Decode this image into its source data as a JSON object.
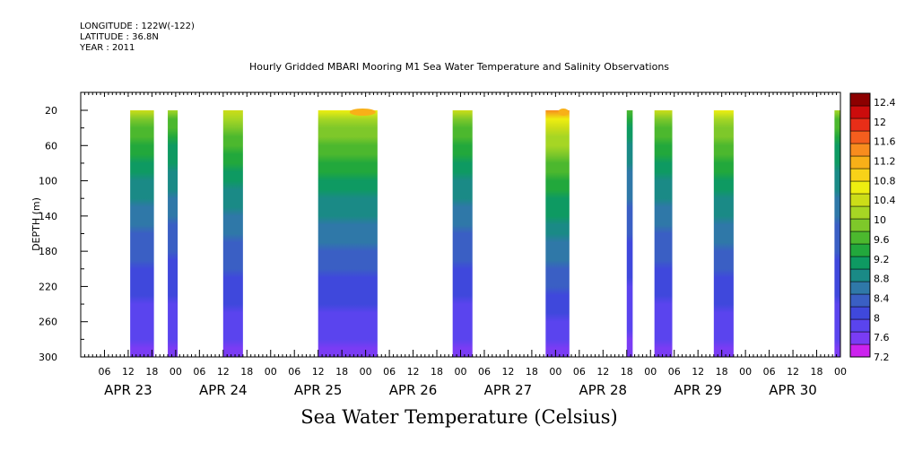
{
  "meta": {
    "longitude": "LONGITUDE : 122W(-122)",
    "latitude": "LATITUDE : 36.8N",
    "year": "YEAR : 2011"
  },
  "chart_data": {
    "type": "heatmap",
    "title": "Hourly Gridded MBARI Mooring M1 Sea Water Temperature and Salinity Observations",
    "subtitle": "Sea Water Temperature (Celsius)",
    "ylabel": "DEPTH (m)",
    "xlabel": "",
    "ylim": [
      300,
      20
    ],
    "y_ticks": [
      20,
      60,
      100,
      140,
      180,
      220,
      260,
      300
    ],
    "x_hour_ticks": [
      "06",
      "12",
      "18",
      "00",
      "06",
      "12",
      "18",
      "00",
      "06",
      "12",
      "18",
      "00",
      "06",
      "12",
      "18",
      "00",
      "06",
      "12",
      "18",
      "00",
      "06",
      "12",
      "18",
      "00",
      "06",
      "12",
      "18",
      "00",
      "06",
      "12",
      "18",
      "00"
    ],
    "x_date_labels": [
      "APR 23",
      "APR 24",
      "APR 25",
      "APR 26",
      "APR 27",
      "APR 28",
      "APR 29",
      "APR 30"
    ],
    "colorbar": {
      "levels": [
        7.2,
        7.6,
        8,
        8.4,
        8.8,
        9.2,
        9.6,
        10,
        10.4,
        10.8,
        11.2,
        11.6,
        12,
        12.4
      ],
      "colors": [
        "#cc22ee",
        "#7a3cf4",
        "#5a44ee",
        "#3f48dc",
        "#3a5fc4",
        "#2f78a8",
        "#1a8a86",
        "#0e9a62",
        "#22a83c",
        "#4cb82e",
        "#7ec82a",
        "#a6d624",
        "#ccdd18",
        "#eeee10",
        "#f8d218",
        "#f8b018",
        "#f88c1e",
        "#f45e1e",
        "#e82e18",
        "#cc0c0c",
        "#8c0000"
      ],
      "label_levels": [
        7.2,
        7.6,
        8,
        8.4,
        8.8,
        9.2,
        9.6,
        10,
        10.4,
        10.8,
        11.2,
        11.6,
        12,
        12.4
      ]
    },
    "x_range_hours": [
      0,
      192
    ],
    "data_blocks": [
      {
        "start_hour": 12.5,
        "end_hour": 18.5,
        "surface_temp": 10.2,
        "warm_top": false
      },
      {
        "start_hour": 22.0,
        "end_hour": 24.5,
        "surface_temp": 10.0,
        "warm_top": false
      },
      {
        "start_hour": 36.0,
        "end_hour": 41.0,
        "surface_temp": 10.4,
        "warm_top": false
      },
      {
        "start_hour": 60.0,
        "end_hour": 75.0,
        "surface_temp": 10.6,
        "warm_top": true
      },
      {
        "start_hour": 94.0,
        "end_hour": 99.0,
        "surface_temp": 10.2,
        "warm_top": false
      },
      {
        "start_hour": 117.5,
        "end_hour": 123.5,
        "surface_temp": 11.2,
        "warm_top": true
      },
      {
        "start_hour": 138.0,
        "end_hour": 139.5,
        "surface_temp": 9.6,
        "warm_top": false
      },
      {
        "start_hour": 145.0,
        "end_hour": 149.5,
        "surface_temp": 10.2,
        "warm_top": false
      },
      {
        "start_hour": 160.0,
        "end_hour": 165.0,
        "surface_temp": 10.6,
        "warm_top": false
      },
      {
        "start_hour": 190.5,
        "end_hour": 192.0,
        "surface_temp": 10.0,
        "warm_top": false
      }
    ],
    "grid": false,
    "legend": "right"
  }
}
